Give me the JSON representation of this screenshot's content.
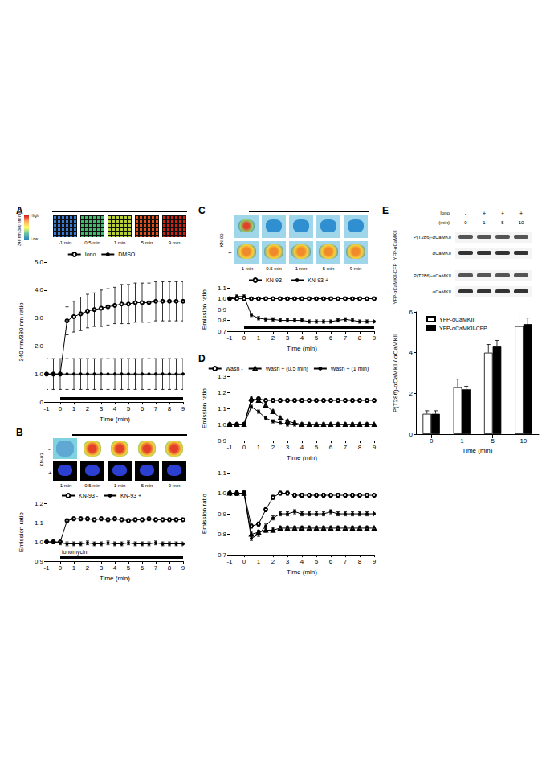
{
  "chart_data": [
    {
      "type": "line",
      "x_label": "Time (min)",
      "y_label": "340 nm/380 nm ratio",
      "x": [
        -1,
        -0.5,
        0,
        0.5,
        1,
        1.5,
        2,
        2.5,
        3,
        3.5,
        4,
        4.5,
        5,
        5.5,
        6,
        6.5,
        7,
        7.5,
        8,
        8.5,
        9
      ],
      "xlim": [
        -1,
        9
      ],
      "xticks": [
        -1,
        0,
        1,
        2,
        3,
        4,
        5,
        6,
        7,
        8,
        9
      ],
      "ylim": [
        0,
        5
      ],
      "yticks": [
        0,
        {
          "value": 1,
          "label": "1.0"
        },
        {
          "value": 2,
          "label": "2.0"
        },
        {
          "value": 3,
          "label": "3.0"
        },
        {
          "value": 4,
          "label": "4.0"
        },
        {
          "value": 5,
          "label": "5.0"
        }
      ],
      "legend": "top",
      "grid": false,
      "treatment_bar": [
        0,
        9
      ],
      "series": [
        {
          "name": "Iono",
          "color": "#000000",
          "marker": "open_circle",
          "values": [
            1.0,
            1.0,
            1.0,
            2.9,
            3.05,
            3.15,
            3.25,
            3.3,
            3.35,
            3.4,
            3.45,
            3.5,
            3.5,
            3.55,
            3.55,
            3.55,
            3.6,
            3.6,
            3.6,
            3.6,
            3.6
          ],
          "errors": [
            0,
            0,
            0,
            0.5,
            0.55,
            0.6,
            0.6,
            0.6,
            0.65,
            0.65,
            0.65,
            0.7,
            0.7,
            0.7,
            0.7,
            0.7,
            0.7,
            0.7,
            0.7,
            0.7,
            0.7
          ]
        },
        {
          "name": "DMSO",
          "color": "#000000",
          "marker": "filled_circle",
          "values": [
            1.0,
            1.0,
            1.0,
            1.0,
            1.0,
            1.0,
            1.0,
            1.0,
            1.0,
            1.0,
            1.0,
            1.0,
            1.0,
            1.0,
            1.0,
            1.0,
            1.0,
            1.0,
            1.0,
            1.0,
            1.0
          ],
          "errors": [
            0.55,
            0.55,
            0.55,
            0.55,
            0.55,
            0.55,
            0.55,
            0.55,
            0.55,
            0.55,
            0.55,
            0.55,
            0.55,
            0.55,
            0.55,
            0.55,
            0.55,
            0.55,
            0.55,
            0.55,
            0.55
          ]
        }
      ]
    },
    {
      "type": "line",
      "x_label": "Time (min)",
      "y_label": "Emission ratio",
      "x": [
        -1,
        -0.5,
        0,
        0.5,
        1,
        1.5,
        2,
        2.5,
        3,
        3.5,
        4,
        4.5,
        5,
        5.5,
        6,
        6.5,
        7,
        7.5,
        8,
        8.5,
        9
      ],
      "xlim": [
        -1,
        9
      ],
      "xticks": [
        -1,
        0,
        1,
        2,
        3,
        4,
        5,
        6,
        7,
        8,
        9
      ],
      "ylim": [
        0.9,
        1.2
      ],
      "yticks": [
        0.9,
        {
          "value": 1,
          "label": "1.0"
        },
        1.1,
        1.2
      ],
      "legend": "top",
      "grid": false,
      "treatment_bar": [
        0,
        9
      ],
      "treatment_label": "ionomycin",
      "series": [
        {
          "name": "KN-93 -",
          "color": "#000000",
          "marker": "open_circle",
          "values": [
            1.0,
            1.0,
            1.0,
            1.11,
            1.12,
            1.12,
            1.12,
            1.115,
            1.12,
            1.115,
            1.12,
            1.115,
            1.11,
            1.115,
            1.115,
            1.12,
            1.115,
            1.115,
            1.115,
            1.115,
            1.115
          ],
          "errors": [
            0.005,
            0.005,
            0.005,
            0.01,
            0.01,
            0.01,
            0.01,
            0.01,
            0.01,
            0.01,
            0.01,
            0.01,
            0.01,
            0.01,
            0.01,
            0.01,
            0.01,
            0.01,
            0.01,
            0.01,
            0.01
          ]
        },
        {
          "name": "KN-93 +",
          "color": "#000000",
          "marker": "filled_circle",
          "values": [
            1.0,
            1.0,
            0.995,
            0.99,
            0.99,
            0.99,
            0.995,
            0.99,
            0.99,
            0.995,
            0.99,
            0.99,
            0.995,
            0.99,
            0.99,
            0.99,
            0.995,
            0.99,
            0.99,
            0.99,
            0.99
          ],
          "errors": [
            0.01,
            0.01,
            0.01,
            0.01,
            0.01,
            0.01,
            0.01,
            0.01,
            0.01,
            0.01,
            0.01,
            0.01,
            0.01,
            0.01,
            0.01,
            0.01,
            0.01,
            0.01,
            0.01,
            0.01,
            0.01
          ]
        }
      ]
    },
    {
      "type": "line",
      "x_label": "Time (min)",
      "y_label": "Emission ratio",
      "x": [
        -1,
        -0.5,
        0,
        0.5,
        1,
        1.5,
        2,
        2.5,
        3,
        3.5,
        4,
        4.5,
        5,
        5.5,
        6,
        6.5,
        7,
        7.5,
        8,
        8.5,
        9
      ],
      "xlim": [
        -1,
        9
      ],
      "xticks": [
        -1,
        0,
        1,
        2,
        3,
        4,
        5,
        6,
        7,
        8,
        9
      ],
      "ylim": [
        0.7,
        1.1
      ],
      "yticks": [
        0.7,
        0.8,
        0.9,
        {
          "value": 1,
          "label": "1.0"
        },
        1.1
      ],
      "legend": "top",
      "grid": false,
      "treatment_bar": [
        0,
        9
      ],
      "series": [
        {
          "name": "KN-93 -",
          "color": "#000000",
          "marker": "open_circle",
          "values": [
            1.0,
            1.0,
            1.0,
            1.0,
            1.0,
            1.0,
            1.0,
            1.0,
            1.0,
            1.0,
            1.0,
            1.0,
            1.0,
            1.0,
            1.0,
            1.0,
            1.0,
            1.0,
            1.0,
            1.0,
            1.0
          ],
          "errors": [
            0.01,
            0.01,
            0.01,
            0.01,
            0.01,
            0.01,
            0.01,
            0.01,
            0.01,
            0.01,
            0.01,
            0.01,
            0.01,
            0.01,
            0.01,
            0.01,
            0.01,
            0.01,
            0.01,
            0.01,
            0.01
          ]
        },
        {
          "name": "KN-93 +",
          "color": "#000000",
          "marker": "filled_circle",
          "values": [
            1.0,
            1.02,
            1.02,
            0.85,
            0.82,
            0.81,
            0.81,
            0.8,
            0.8,
            0.8,
            0.8,
            0.79,
            0.79,
            0.79,
            0.79,
            0.8,
            0.81,
            0.8,
            0.79,
            0.79,
            0.79
          ],
          "errors": [
            0.015,
            0.015,
            0.015,
            0.015,
            0.015,
            0.015,
            0.015,
            0.015,
            0.015,
            0.015,
            0.015,
            0.015,
            0.015,
            0.015,
            0.015,
            0.015,
            0.015,
            0.015,
            0.015,
            0.015,
            0.015
          ]
        }
      ]
    },
    {
      "type": "line",
      "x_label": "Time (min)",
      "y_label": "Emission ratio",
      "x": [
        -1,
        -0.5,
        0,
        0.5,
        1,
        1.5,
        2,
        2.5,
        3,
        3.5,
        4,
        4.5,
        5,
        5.5,
        6,
        6.5,
        7,
        7.5,
        8,
        8.5,
        9
      ],
      "xlim": [
        -1,
        9
      ],
      "xticks": [
        -1,
        0,
        1,
        2,
        3,
        4,
        5,
        6,
        7,
        8,
        9
      ],
      "ylim": [
        0.9,
        1.3
      ],
      "yticks": [
        0.9,
        {
          "value": 1,
          "label": "1.0"
        },
        1.1,
        1.2,
        1.3
      ],
      "legend": "top",
      "grid": false,
      "series": [
        {
          "name": "Wash -",
          "color": "#000000",
          "marker": "open_circle",
          "values": [
            1.0,
            1.0,
            1.0,
            1.15,
            1.16,
            1.15,
            1.15,
            1.15,
            1.15,
            1.15,
            1.15,
            1.15,
            1.15,
            1.15,
            1.15,
            1.15,
            1.15,
            1.15,
            1.15,
            1.15,
            1.15
          ],
          "errors": [
            0.01,
            0.01,
            0.01,
            0.01,
            0.01,
            0.01,
            0.01,
            0.01,
            0.01,
            0.01,
            0.01,
            0.01,
            0.01,
            0.01,
            0.01,
            0.01,
            0.01,
            0.01,
            0.01,
            0.01,
            0.01
          ]
        },
        {
          "name": "Wash + (0.5 min)",
          "color": "#000000",
          "marker": "open_triangle",
          "values": [
            1.0,
            1.0,
            1.0,
            1.16,
            1.15,
            1.12,
            1.08,
            1.04,
            1.02,
            1.01,
            1.0,
            1.0,
            1.0,
            1.0,
            1.0,
            1.0,
            1.0,
            1.0,
            1.0,
            1.0,
            1.0
          ],
          "errors": [
            0.01,
            0.01,
            0.01,
            0.01,
            0.01,
            0.01,
            0.01,
            0.01,
            0.01,
            0.01,
            0.01,
            0.01,
            0.01,
            0.01,
            0.01,
            0.01,
            0.01,
            0.01,
            0.01,
            0.01,
            0.01
          ]
        },
        {
          "name": "Wash + (1 min)",
          "color": "#000000",
          "marker": "filled_circle",
          "values": [
            1.0,
            1.0,
            1.0,
            1.11,
            1.08,
            1.04,
            1.02,
            1.01,
            1.0,
            1.0,
            1.0,
            1.0,
            1.0,
            1.0,
            1.0,
            1.0,
            1.0,
            1.0,
            1.0,
            1.0,
            1.0
          ],
          "errors": [
            0.01,
            0.01,
            0.01,
            0.01,
            0.01,
            0.01,
            0.01,
            0.01,
            0.01,
            0.01,
            0.01,
            0.01,
            0.01,
            0.01,
            0.01,
            0.01,
            0.01,
            0.01,
            0.01,
            0.01,
            0.01
          ]
        }
      ]
    },
    {
      "type": "line",
      "x_label": "Time (min)",
      "y_label": "Emission ratio",
      "x": [
        -1,
        -0.5,
        0,
        0.5,
        1,
        1.5,
        2,
        2.5,
        3,
        3.5,
        4,
        4.5,
        5,
        5.5,
        6,
        6.5,
        7,
        7.5,
        8,
        8.5,
        9
      ],
      "xlim": [
        -1,
        9
      ],
      "xticks": [
        -1,
        0,
        1,
        2,
        3,
        4,
        5,
        6,
        7,
        8,
        9
      ],
      "ylim": [
        0.7,
        1.1
      ],
      "yticks": [
        0.7,
        0.8,
        0.9,
        {
          "value": 1,
          "label": "1.0"
        },
        1.1
      ],
      "grid": false,
      "series": [
        {
          "color": "#000000",
          "marker": "open_circle",
          "values": [
            1.0,
            1.0,
            1.0,
            0.84,
            0.85,
            0.92,
            0.98,
            1.0,
            1.0,
            0.99,
            0.99,
            0.99,
            0.99,
            0.99,
            0.99,
            0.99,
            0.99,
            0.99,
            0.99,
            0.99,
            0.99
          ],
          "errors": [
            0.01,
            0.01,
            0.01,
            0.01,
            0.01,
            0.01,
            0.01,
            0.01,
            0.01,
            0.01,
            0.01,
            0.01,
            0.01,
            0.01,
            0.01,
            0.01,
            0.01,
            0.01,
            0.01,
            0.01,
            0.01
          ]
        },
        {
          "color": "#000000",
          "marker": "open_triangle",
          "values": [
            1.0,
            1.0,
            1.0,
            0.8,
            0.81,
            0.82,
            0.82,
            0.83,
            0.83,
            0.83,
            0.83,
            0.83,
            0.83,
            0.83,
            0.83,
            0.83,
            0.83,
            0.83,
            0.83,
            0.83,
            0.83
          ],
          "errors": [
            0.01,
            0.01,
            0.01,
            0.01,
            0.01,
            0.01,
            0.01,
            0.01,
            0.01,
            0.01,
            0.01,
            0.01,
            0.01,
            0.01,
            0.01,
            0.01,
            0.01,
            0.01,
            0.01,
            0.01,
            0.01
          ]
        },
        {
          "color": "#000000",
          "marker": "filled_circle",
          "values": [
            1.0,
            1.0,
            1.0,
            0.78,
            0.8,
            0.84,
            0.88,
            0.9,
            0.9,
            0.91,
            0.9,
            0.9,
            0.9,
            0.9,
            0.91,
            0.9,
            0.9,
            0.9,
            0.9,
            0.9,
            0.9
          ],
          "errors": [
            0.01,
            0.01,
            0.01,
            0.01,
            0.01,
            0.01,
            0.01,
            0.01,
            0.01,
            0.01,
            0.01,
            0.01,
            0.01,
            0.01,
            0.01,
            0.01,
            0.01,
            0.01,
            0.01,
            0.01,
            0.01
          ]
        }
      ]
    },
    {
      "type": "bar",
      "x_label": "Time (min)",
      "y_label": "P(T286)-αCaMKII/ αCaMKII",
      "categories": [
        "0",
        "1",
        "5",
        "10"
      ],
      "ylim": [
        0,
        6
      ],
      "yticks": [
        0,
        2,
        4,
        6
      ],
      "legend": "upper left",
      "grid": false,
      "series": [
        {
          "name": "YFP-αCaMKII",
          "color": "#ffffff",
          "values": [
            1.0,
            2.3,
            4.0,
            5.3
          ],
          "errors": [
            0.15,
            0.4,
            0.4,
            0.8
          ]
        },
        {
          "name": "YFP-αCaMKII-CFP",
          "color": "#000000",
          "values": [
            1.0,
            2.2,
            4.3,
            5.4
          ],
          "errors": [
            0.15,
            0.15,
            0.3,
            0.3
          ]
        }
      ]
    }
  ],
  "figure": {
    "panel_letters": [
      "A",
      "B",
      "C",
      "D",
      "E"
    ],
    "strip_a": {
      "times": [
        "-1 min",
        "0.5 min",
        "1 min",
        "5 min",
        "9 min"
      ],
      "colorbar_title": "340 nm/380 nm ratio",
      "high": "High",
      "low": "Low"
    },
    "strip_b": {
      "times": [
        "-1 min",
        "0.5 min",
        "1 min",
        "5 min",
        "9 min"
      ],
      "group": "KN-93",
      "rows": [
        "-",
        "+"
      ]
    },
    "strip_c": {
      "times": [
        "-1 min",
        "0.5 min",
        "1 min",
        "5 min",
        "9 min"
      ],
      "group": "KN-93",
      "rows": [
        "-",
        "+"
      ]
    },
    "blot": {
      "treatment_label": "Iono",
      "treatment": [
        "-",
        "+",
        "+",
        "+"
      ],
      "time_label": "(min)",
      "times": [
        "0",
        "1",
        "5",
        "10"
      ],
      "groups": [
        {
          "name": "YFP-αCaMKII",
          "rows": [
            "P(T286)-αCaMKII",
            "αCaMKII"
          ]
        },
        {
          "name": "YFP-αCaMKII-CFP",
          "rows": [
            "P(T286)-αCaMKII",
            "αCaMKII"
          ]
        }
      ]
    }
  }
}
